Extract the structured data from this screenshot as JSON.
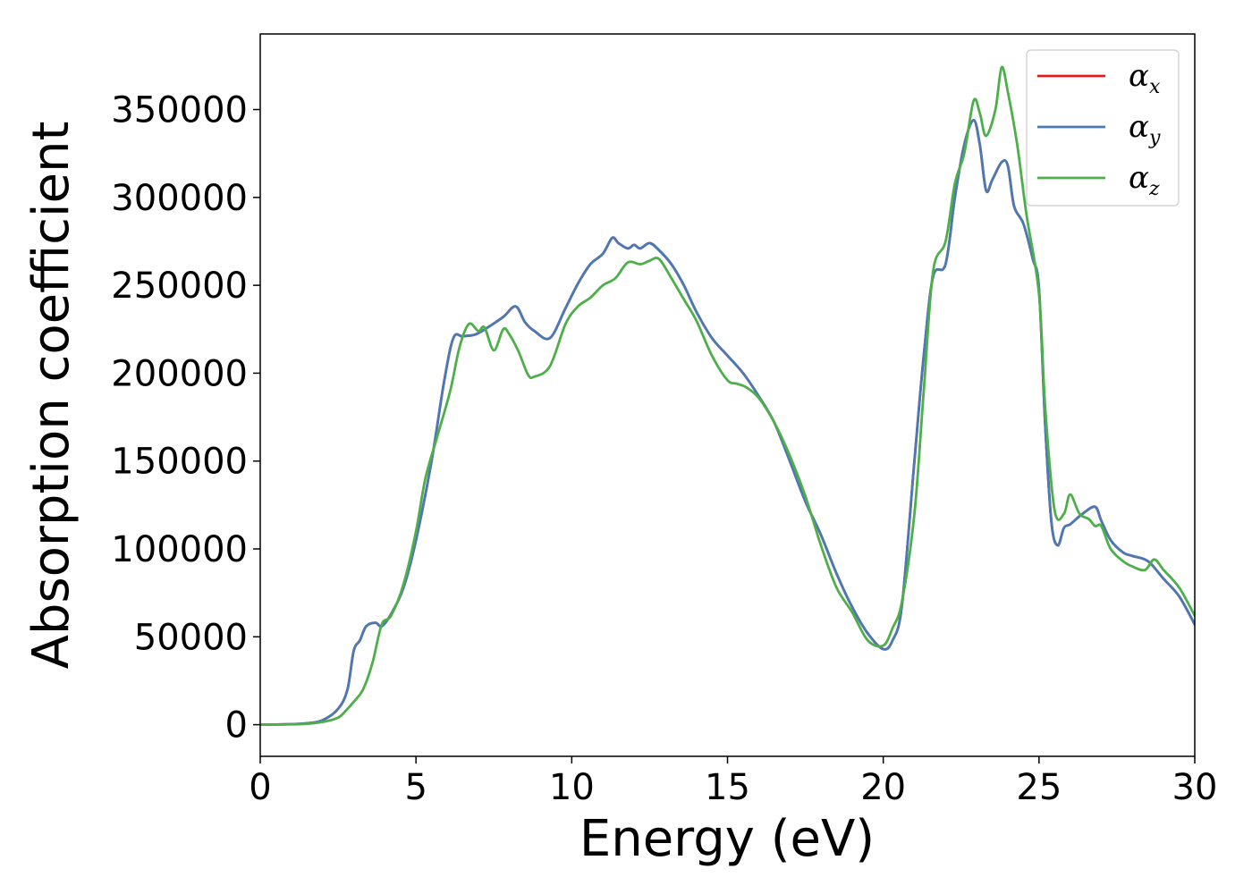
{
  "chart_data": {
    "type": "line",
    "title": "",
    "xlabel": "Energy (eV)",
    "ylabel": "Absorption coefficient",
    "xlim": [
      0,
      30
    ],
    "ylim": [
      -18000,
      393000
    ],
    "xticks": [
      0,
      5,
      10,
      15,
      20,
      25,
      30
    ],
    "xtick_labels": [
      "0",
      "5",
      "10",
      "15",
      "20",
      "25",
      "30"
    ],
    "yticks": [
      0,
      50000,
      100000,
      150000,
      200000,
      250000,
      300000,
      350000
    ],
    "ytick_labels": [
      "0",
      "50000",
      "100000",
      "150000",
      "200000",
      "250000",
      "300000",
      "350000"
    ],
    "grid": false,
    "legend_position": "top-right",
    "series": [
      {
        "name": "αx",
        "legend_base": "α",
        "legend_sub": "x",
        "color": "#e41a1c",
        "x": [
          0,
          1,
          1.5,
          2,
          2.5,
          2.8,
          3.0,
          3.2,
          3.4,
          3.7,
          3.9,
          4.2,
          4.6,
          5.0,
          5.5,
          5.9,
          6.2,
          6.5,
          6.9,
          7.3,
          7.8,
          8.2,
          8.5,
          8.8,
          9.3,
          9.8,
          10.2,
          10.6,
          11.0,
          11.3,
          11.5,
          11.8,
          12.0,
          12.2,
          12.5,
          12.8,
          13.2,
          13.6,
          14.0,
          14.5,
          15.0,
          15.5,
          16.0,
          16.5,
          17.0,
          17.5,
          18.0,
          18.5,
          19.0,
          19.5,
          20.0,
          20.3,
          20.6,
          21.0,
          21.3,
          21.6,
          22.0,
          22.3,
          22.6,
          22.9,
          23.1,
          23.3,
          23.5,
          23.8,
          24.0,
          24.2,
          24.5,
          24.8,
          25.0,
          25.2,
          25.4,
          25.6,
          25.8,
          26.0,
          26.4,
          26.8,
          27.0,
          27.3,
          27.7,
          28.0,
          28.5,
          29.0,
          29.5,
          30.0
        ],
        "values": [
          0,
          300,
          800,
          2500,
          9000,
          20000,
          42000,
          48000,
          56000,
          58000,
          56000,
          63000,
          78000,
          105000,
          150000,
          195000,
          220000,
          221000,
          222000,
          226000,
          232000,
          238000,
          229000,
          224000,
          220000,
          237000,
          251000,
          262000,
          268000,
          277000,
          274000,
          271000,
          273000,
          271000,
          274000,
          270000,
          262000,
          250000,
          235000,
          220000,
          210000,
          200000,
          187000,
          172000,
          150000,
          127000,
          108000,
          86000,
          67000,
          52000,
          43000,
          48000,
          68000,
          150000,
          210000,
          255000,
          262000,
          300000,
          330000,
          344000,
          330000,
          304000,
          310000,
          320000,
          318000,
          295000,
          285000,
          265000,
          248000,
          170000,
          115000,
          102000,
          112000,
          114000,
          120000,
          124000,
          116000,
          105000,
          98000,
          96000,
          93000,
          83000,
          73000,
          57000
        ]
      },
      {
        "name": "αy",
        "legend_base": "α",
        "legend_sub": "y",
        "color": "#4a7ab5",
        "x": [
          0,
          1,
          1.5,
          2,
          2.5,
          2.8,
          3.0,
          3.2,
          3.4,
          3.7,
          3.9,
          4.2,
          4.6,
          5.0,
          5.5,
          5.9,
          6.2,
          6.5,
          6.9,
          7.3,
          7.8,
          8.2,
          8.5,
          8.8,
          9.3,
          9.8,
          10.2,
          10.6,
          11.0,
          11.3,
          11.5,
          11.8,
          12.0,
          12.2,
          12.5,
          12.8,
          13.2,
          13.6,
          14.0,
          14.5,
          15.0,
          15.5,
          16.0,
          16.5,
          17.0,
          17.5,
          18.0,
          18.5,
          19.0,
          19.5,
          20.0,
          20.3,
          20.6,
          21.0,
          21.3,
          21.6,
          22.0,
          22.3,
          22.6,
          22.9,
          23.1,
          23.3,
          23.5,
          23.8,
          24.0,
          24.2,
          24.5,
          24.8,
          25.0,
          25.2,
          25.4,
          25.6,
          25.8,
          26.0,
          26.4,
          26.8,
          27.0,
          27.3,
          27.7,
          28.0,
          28.5,
          29.0,
          29.5,
          30.0
        ],
        "values": [
          0,
          300,
          800,
          2500,
          9000,
          20000,
          42000,
          48000,
          56000,
          58000,
          56000,
          63000,
          78000,
          105000,
          150000,
          195000,
          220000,
          221000,
          222000,
          226000,
          232000,
          238000,
          229000,
          224000,
          220000,
          237000,
          251000,
          262000,
          268000,
          277000,
          274000,
          271000,
          273000,
          271000,
          274000,
          270000,
          262000,
          250000,
          235000,
          220000,
          210000,
          200000,
          187000,
          172000,
          150000,
          127000,
          108000,
          86000,
          67000,
          52000,
          43000,
          48000,
          68000,
          150000,
          210000,
          255000,
          262000,
          300000,
          330000,
          344000,
          330000,
          304000,
          310000,
          320000,
          318000,
          295000,
          285000,
          265000,
          248000,
          170000,
          115000,
          102000,
          112000,
          114000,
          120000,
          124000,
          116000,
          105000,
          98000,
          96000,
          93000,
          83000,
          73000,
          57000
        ]
      },
      {
        "name": "αz",
        "legend_base": "α",
        "legend_sub": "z",
        "color": "#4daf4a",
        "x": [
          0,
          1,
          1.5,
          2,
          2.5,
          2.8,
          3.0,
          3.3,
          3.6,
          3.9,
          4.2,
          4.6,
          5.0,
          5.3,
          5.7,
          6.1,
          6.4,
          6.7,
          7.0,
          7.2,
          7.5,
          7.8,
          8.0,
          8.3,
          8.6,
          8.8,
          9.3,
          9.8,
          10.2,
          10.6,
          11.0,
          11.4,
          11.8,
          12.2,
          12.5,
          12.8,
          13.2,
          13.6,
          14.0,
          14.5,
          15.0,
          15.3,
          15.6,
          16.0,
          16.5,
          17.0,
          17.5,
          18.0,
          18.5,
          19.0,
          19.5,
          20.0,
          20.3,
          20.6,
          21.0,
          21.3,
          21.6,
          22.0,
          22.3,
          22.6,
          22.9,
          23.1,
          23.3,
          23.6,
          23.8,
          24.0,
          24.3,
          24.6,
          25.0,
          25.2,
          25.5,
          25.8,
          26.0,
          26.3,
          26.6,
          26.8,
          27.0,
          27.3,
          27.7,
          28.0,
          28.4,
          28.7,
          29.0,
          29.5,
          30.0
        ],
        "values": [
          0,
          200,
          500,
          1500,
          4000,
          9000,
          13000,
          20000,
          35000,
          57000,
          62000,
          80000,
          110000,
          140000,
          165000,
          190000,
          215000,
          228000,
          224000,
          226000,
          213000,
          225000,
          222000,
          212000,
          199000,
          198000,
          204000,
          228000,
          238000,
          243000,
          250000,
          254000,
          263000,
          262000,
          264000,
          265000,
          254000,
          242000,
          230000,
          210000,
          196000,
          194000,
          192000,
          186000,
          172000,
          153000,
          130000,
          102000,
          78000,
          64000,
          48000,
          45000,
          55000,
          70000,
          120000,
          190000,
          258000,
          275000,
          308000,
          325000,
          355000,
          348000,
          335000,
          350000,
          374000,
          360000,
          330000,
          290000,
          245000,
          180000,
          122000,
          120000,
          131000,
          120000,
          117000,
          113000,
          113000,
          100000,
          93000,
          90000,
          88000,
          94000,
          88000,
          78000,
          62000
        ]
      }
    ]
  }
}
